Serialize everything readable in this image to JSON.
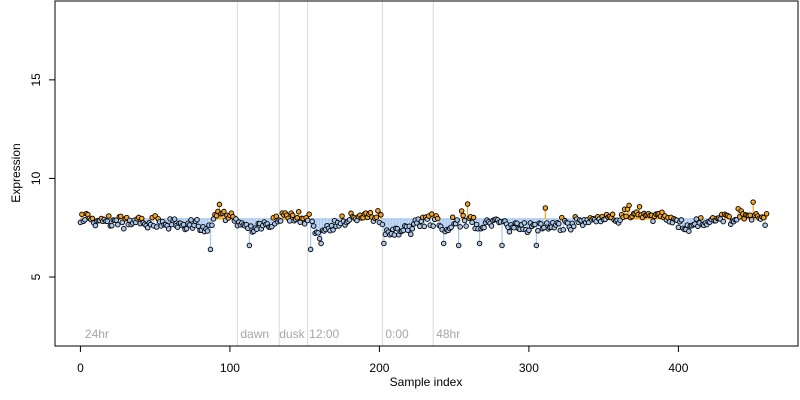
{
  "chart_data": {
    "type": "scatter",
    "title": "",
    "xlabel": "Sample index",
    "ylabel": "Expression",
    "xlim": [
      -17,
      480
    ],
    "ylim": [
      1.5,
      19
    ],
    "x_ticks": [
      0,
      100,
      200,
      300,
      400
    ],
    "y_ticks": [
      5,
      10,
      15
    ],
    "baseline": 7.95,
    "grid": false,
    "legend": "none",
    "colors": {
      "above": "#f5a623",
      "below": "#a9c8f0",
      "point_stroke": "#000000",
      "vline": "#d9d9d9",
      "annotation": "#a6a6a6"
    },
    "vertical_lines": [
      105,
      133,
      152,
      202,
      236
    ],
    "annotations": [
      {
        "x": 3,
        "text": "24hr"
      },
      {
        "x": 107,
        "text": "dawn"
      },
      {
        "x": 133,
        "text": "dusk"
      },
      {
        "x": 153,
        "text": "12:00"
      },
      {
        "x": 204,
        "text": "0:00"
      },
      {
        "x": 238,
        "text": "48hr"
      }
    ],
    "n_points": 460,
    "seed": 17,
    "profile_x": [
      0,
      60,
      85,
      92,
      100,
      105,
      112,
      125,
      133,
      140,
      152,
      158,
      165,
      175,
      190,
      200,
      205,
      215,
      225,
      236,
      245,
      255,
      265,
      275,
      290,
      305,
      315,
      330,
      345,
      360,
      375,
      390,
      400,
      405,
      415,
      430,
      445,
      460
    ],
    "profile_y": [
      7.9,
      7.7,
      7.5,
      8.3,
      8.1,
      7.8,
      7.5,
      7.6,
      8.0,
      8.1,
      7.9,
      7.2,
      7.5,
      7.8,
      8.2,
      7.9,
      7.3,
      7.4,
      7.8,
      7.9,
      7.4,
      8.0,
      7.6,
      7.8,
      7.6,
      7.4,
      7.6,
      7.7,
      7.9,
      8.1,
      8.2,
      8.0,
      7.8,
      7.5,
      7.8,
      8.0,
      8.1,
      8.0
    ],
    "noise_sd": 0.17,
    "outliers": [
      {
        "x": 87,
        "y": 6.4
      },
      {
        "x": 113,
        "y": 6.6
      },
      {
        "x": 154,
        "y": 6.4
      },
      {
        "x": 161,
        "y": 6.7
      },
      {
        "x": 203,
        "y": 6.7
      },
      {
        "x": 243,
        "y": 6.7
      },
      {
        "x": 253,
        "y": 6.6
      },
      {
        "x": 259,
        "y": 8.7
      },
      {
        "x": 267,
        "y": 6.7
      },
      {
        "x": 282,
        "y": 6.6
      },
      {
        "x": 305,
        "y": 6.6
      },
      {
        "x": 311,
        "y": 8.5
      },
      {
        "x": 450,
        "y": 8.8
      }
    ]
  }
}
